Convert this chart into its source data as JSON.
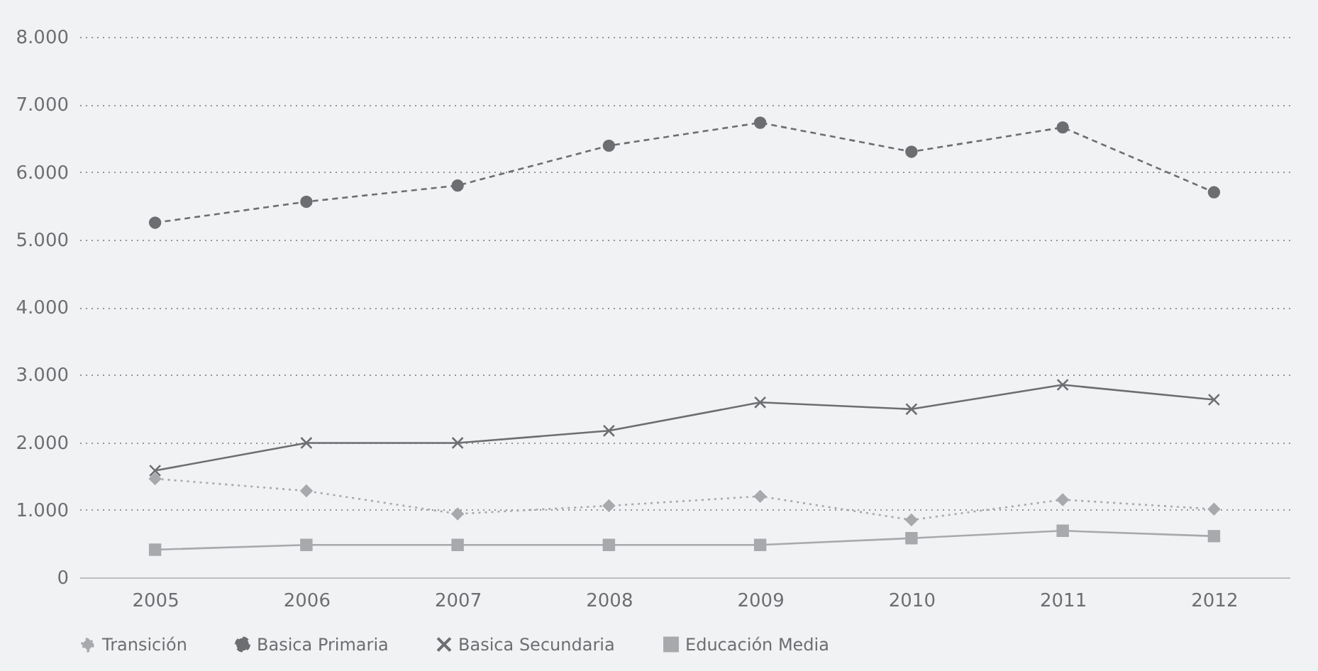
{
  "chart_data": {
    "type": "line",
    "categories": [
      "2005",
      "2006",
      "2007",
      "2008",
      "2009",
      "2010",
      "2011",
      "2012"
    ],
    "series": [
      {
        "name": "Transición",
        "color": "#a7a9ac",
        "marker": "diamond",
        "line_style": "dotted",
        "values": [
          1460,
          1280,
          940,
          1060,
          1200,
          850,
          1150,
          1010
        ]
      },
      {
        "name": "Basica Primaria",
        "color": "#6d6e71",
        "marker": "circle",
        "line_style": "dashed",
        "values": [
          5250,
          5560,
          5800,
          6390,
          6730,
          6300,
          6660,
          5700
        ]
      },
      {
        "name": "Basica Secundaria",
        "color": "#6d6e71",
        "marker": "cross",
        "line_style": "solid",
        "values": [
          1580,
          1990,
          1990,
          2170,
          2590,
          2490,
          2850,
          2630
        ]
      },
      {
        "name": "Educación Media",
        "color": "#a7a9ac",
        "marker": "square",
        "line_style": "solid",
        "values": [
          410,
          480,
          480,
          480,
          480,
          580,
          690,
          610
        ]
      }
    ],
    "ylim": [
      0,
      8000
    ],
    "yticks": [
      {
        "value": 0,
        "label": "0"
      },
      {
        "value": 1000,
        "label": "1.000"
      },
      {
        "value": 2000,
        "label": "2.000"
      },
      {
        "value": 3000,
        "label": "3.000"
      },
      {
        "value": 4000,
        "label": "4.000"
      },
      {
        "value": 5000,
        "label": "5.000"
      },
      {
        "value": 6000,
        "label": "6.000"
      },
      {
        "value": 7000,
        "label": "7.000"
      },
      {
        "value": 8000,
        "label": "8.000"
      }
    ],
    "grid": "y",
    "legend": "bottom"
  }
}
